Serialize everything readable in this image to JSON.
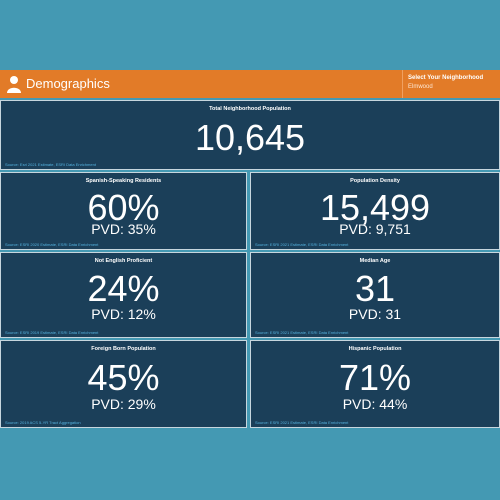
{
  "header": {
    "icon": "user-icon",
    "title": "Demographics",
    "selector_label": "Select Your Neighborhood",
    "selector_value": "Elmwood"
  },
  "panels": [
    {
      "label": "Total Neighborhood Population",
      "value": "10,645",
      "source": "Source: Esri 2021 Estimate, ESRI Data Enrichment"
    },
    {
      "label": "Spanish-Speaking Residents",
      "value": "60%",
      "sub": "PVD: 35%",
      "source": "Source: ESRI 2020 Estimate, ESRI Data Enrichment"
    },
    {
      "label": "Population Density",
      "value": "15,499",
      "sub": "PVD: 9,751",
      "source": "Source: ESRI 2021 Estimate, ESRI Data Enrichment"
    },
    {
      "label": "Not English Proficient",
      "value": "24%",
      "sub": "PVD: 12%",
      "source": "Source: ESRI 2019 Estimate, ESRI Data Enrichment"
    },
    {
      "label": "Median Age",
      "value": "31",
      "sub": "PVD: 31",
      "source": "Source: ESRI 2021 Estimate, ESRI Data Enrichment"
    },
    {
      "label": "Foreign Born Population",
      "value": "45%",
      "sub": "PVD: 29%",
      "source": "Source: 2019 ACS 5-YR Tract Aggregation"
    },
    {
      "label": "Hispanic Population",
      "value": "71%",
      "sub": "PVD: 44%",
      "source": "Source: ESRI 2021 Estimate, ESRI Data Enrichment"
    }
  ],
  "colors": {
    "page_background": "#4499b3",
    "header_accent": "#e27b28",
    "panel_background": "#1b3f59",
    "source_text": "#55b3e0"
  }
}
